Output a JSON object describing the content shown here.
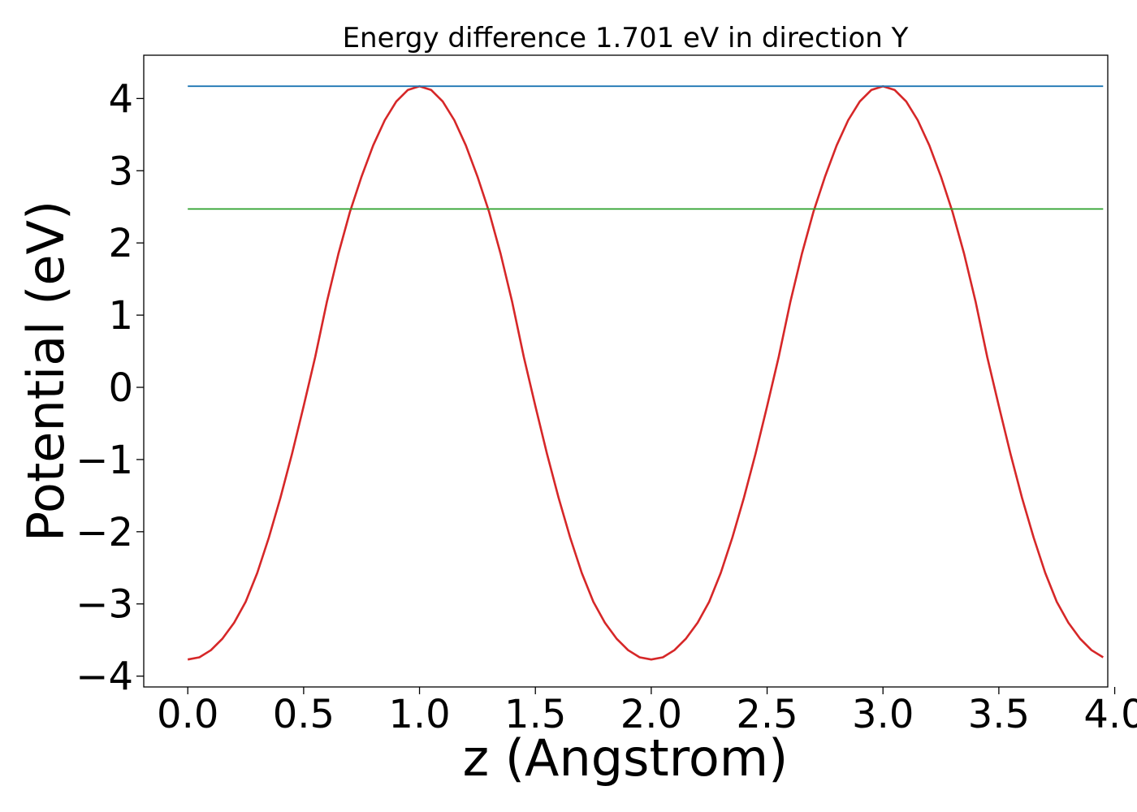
{
  "chart_data": {
    "type": "line",
    "title": "Energy difference 1.701 eV in direction Y",
    "xlabel": "z (Angstrom)",
    "ylabel": "Potential (eV)",
    "xlim": [
      -0.19,
      3.97
    ],
    "ylim": [
      -4.15,
      4.6
    ],
    "xticks": [
      0.0,
      0.5,
      1.0,
      1.5,
      2.0,
      2.5,
      3.0,
      3.5,
      4.0
    ],
    "xtick_labels": [
      "0.0",
      "0.5",
      "1.0",
      "1.5",
      "2.0",
      "2.5",
      "3.0",
      "3.5",
      "4.0"
    ],
    "yticks": [
      -4,
      -3,
      -2,
      -1,
      0,
      1,
      2,
      3,
      4
    ],
    "ytick_labels": [
      "−4",
      "−3",
      "−2",
      "−1",
      "0",
      "1",
      "2",
      "3",
      "4"
    ],
    "grid": false,
    "series": [
      {
        "color": "#d62728",
        "x": [
          0.0,
          0.05,
          0.1,
          0.15,
          0.2,
          0.25,
          0.3,
          0.35,
          0.4,
          0.45,
          0.5,
          0.55,
          0.6,
          0.65,
          0.7,
          0.75,
          0.8,
          0.85,
          0.9,
          0.95,
          1.0,
          1.05,
          1.1,
          1.15,
          1.2,
          1.25,
          1.3,
          1.35,
          1.4,
          1.45,
          1.5,
          1.55,
          1.6,
          1.65,
          1.7,
          1.75,
          1.8,
          1.85,
          1.9,
          1.95,
          2.0,
          2.05,
          2.1,
          2.15,
          2.2,
          2.25,
          2.3,
          2.35,
          2.4,
          2.45,
          2.5,
          2.55,
          2.6,
          2.65,
          2.7,
          2.75,
          2.8,
          2.85,
          2.9,
          2.95,
          3.0,
          3.05,
          3.1,
          3.15,
          3.2,
          3.25,
          3.3,
          3.35,
          3.4,
          3.45,
          3.5,
          3.55,
          3.6,
          3.65,
          3.7,
          3.75,
          3.8,
          3.85,
          3.9,
          3.95
        ],
        "y": [
          -3.77,
          -3.74,
          -3.64,
          -3.48,
          -3.26,
          -2.97,
          -2.57,
          -2.08,
          -1.53,
          -0.92,
          -0.26,
          0.42,
          1.18,
          1.85,
          2.43,
          2.92,
          3.35,
          3.7,
          3.96,
          4.12,
          4.17,
          4.12,
          3.96,
          3.7,
          3.35,
          2.92,
          2.43,
          1.85,
          1.18,
          0.42,
          -0.26,
          -0.92,
          -1.53,
          -2.08,
          -2.57,
          -2.97,
          -3.26,
          -3.48,
          -3.64,
          -3.74,
          -3.77,
          -3.74,
          -3.64,
          -3.48,
          -3.26,
          -2.97,
          -2.57,
          -2.08,
          -1.53,
          -0.92,
          -0.26,
          0.42,
          1.18,
          1.85,
          2.43,
          2.92,
          3.35,
          3.7,
          3.96,
          4.12,
          4.17,
          4.12,
          3.96,
          3.7,
          3.35,
          2.92,
          2.43,
          1.85,
          1.18,
          0.42,
          -0.26,
          -0.92,
          -1.53,
          -2.08,
          -2.57,
          -2.97,
          -3.26,
          -3.48,
          -3.64,
          -3.74
        ]
      },
      {
        "color": "#1f77b4",
        "x": [
          0.0,
          3.95
        ],
        "y": [
          4.17,
          4.17
        ]
      },
      {
        "color": "#2ca02c",
        "x": [
          0.0,
          3.95
        ],
        "y": [
          2.47,
          2.47
        ]
      }
    ]
  }
}
